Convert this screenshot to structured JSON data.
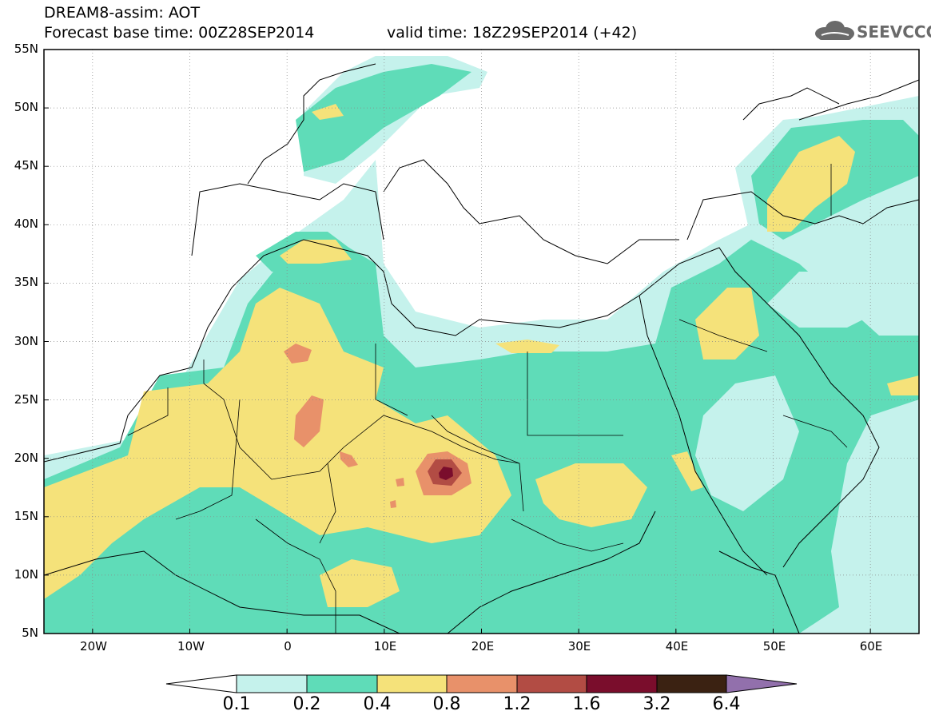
{
  "header": {
    "title": "DREAM8-assim: AOT",
    "base_time": "Forecast base time: 00Z28SEP2014",
    "valid_time": "valid time: 18Z29SEP2014 (+42)"
  },
  "logo": {
    "text": "SEEVCCC",
    "icon": "cloud-icon"
  },
  "map": {
    "projection": "lat-lon",
    "lon_range": [
      -25,
      65
    ],
    "lat_range": [
      5,
      55
    ],
    "lat_labels": [
      "55N",
      "50N",
      "45N",
      "40N",
      "35N",
      "30N",
      "25N",
      "20N",
      "15N",
      "10N",
      "5N"
    ],
    "lon_labels": [
      "20W",
      "10W",
      "0",
      "10E",
      "20E",
      "30E",
      "40E",
      "50E",
      "60E"
    ],
    "grid": true
  },
  "colorbar": {
    "labels": [
      "0.1",
      "0.2",
      "0.4",
      "0.8",
      "1.2",
      "1.6",
      "3.2",
      "6.4"
    ],
    "colors": [
      "#ffffff",
      "#c5f2ec",
      "#5fdcb8",
      "#f5e27a",
      "#e8916a",
      "#b24c44",
      "#7a0d2c",
      "#3b2212",
      "#9270ac"
    ]
  }
}
